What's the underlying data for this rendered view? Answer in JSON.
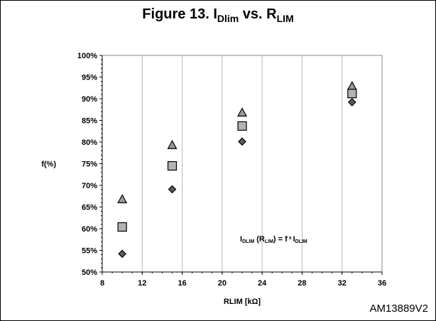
{
  "figure": {
    "title_main": "Figure 13. I",
    "title_sub1": "Dlim",
    "title_mid": " vs. R",
    "title_sub2": "LIM",
    "equation": {
      "p1": "I",
      "s1": "DLIM",
      "p2": " (R",
      "s2": "LIM",
      "p3": ") = f",
      "sup": " x ",
      "p4": "I",
      "s3": "DLIM"
    },
    "code": "AM13889V2"
  },
  "chart_data": {
    "type": "scatter",
    "xlabel": "RLIM [kΩ]",
    "ylabel": "f(%)",
    "xlim": [
      8,
      36
    ],
    "ylim": [
      50,
      100
    ],
    "xticks": [
      "8",
      "12",
      "16",
      "20",
      "24",
      "28",
      "32",
      "36"
    ],
    "yticks": [
      "50%",
      "55%",
      "60%",
      "65%",
      "70%",
      "75%",
      "80%",
      "85%",
      "90%",
      "95%",
      "100%"
    ],
    "grid": "vertical",
    "series": [
      {
        "marker": "triangle",
        "color": "#9a9a9a",
        "x": [
          10,
          15,
          22,
          33
        ],
        "y": [
          66.8,
          79.3,
          86.8,
          92.9
        ]
      },
      {
        "marker": "square",
        "color": "#b2b2b2",
        "x": [
          10,
          15,
          22,
          33
        ],
        "y": [
          60.4,
          74.5,
          83.7,
          91.2
        ]
      },
      {
        "marker": "diamond",
        "color": "#5a5a5a",
        "x": [
          10,
          15,
          22,
          33
        ],
        "y": [
          54.2,
          69.1,
          80.1,
          89.2
        ]
      }
    ]
  }
}
